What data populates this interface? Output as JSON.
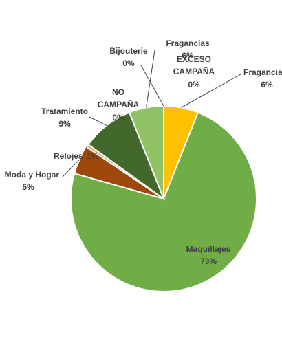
{
  "chart_data": {
    "type": "pie",
    "slices": [
      {
        "label": "Fragancias",
        "value": 6,
        "value_label": "6%",
        "color": "#FFC000"
      },
      {
        "label": "Maquillajes",
        "value": 73,
        "value_label": "73%",
        "color": "#70AD47"
      },
      {
        "label": "Moda y Hogar",
        "value": 5,
        "value_label": "5%",
        "color": "#9E480E"
      },
      {
        "label": "Relojes",
        "value": 0.5,
        "value_label": "1%",
        "color": "#C9A066"
      },
      {
        "label": "Tratamiento",
        "value": 9,
        "value_label": "9%",
        "color": "#43682B"
      },
      {
        "label": "NO CAMPAÑA",
        "value": 0,
        "value_label": "0%",
        "color": "#A9D18E"
      },
      {
        "label": "Fragancias",
        "value": 6,
        "value_label": "6%",
        "color": "#91C265"
      },
      {
        "label": "Bijouterie",
        "value": 0,
        "value_label": "0%",
        "color": "#BDD7A6"
      },
      {
        "label": "EXCESO CAMPAÑA",
        "value": 0,
        "value_label": "0%",
        "color": "#FFE699"
      }
    ],
    "title": "",
    "legend": "none",
    "data_labels": "outside-with-leader-lines"
  }
}
